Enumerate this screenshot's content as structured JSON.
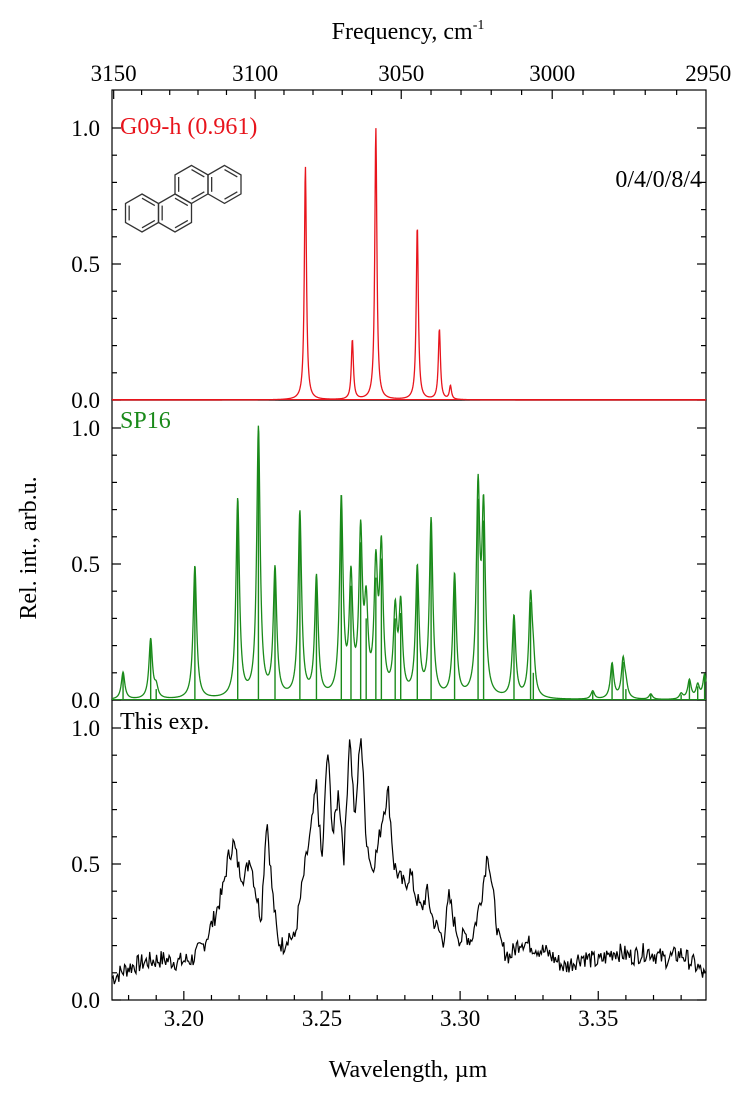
{
  "chart_data": {
    "type": "line",
    "top_axis": {
      "label": "Frequency, cm",
      "label_superscript": "-1",
      "ticks": [
        "3150",
        "3100",
        "3050",
        "3000",
        "2950"
      ],
      "tick_values": [
        3150,
        3100,
        3050,
        3000,
        2950
      ]
    },
    "x_axis": {
      "label": "Wavelength, µm",
      "ticks": [
        "3.20",
        "3.25",
        "3.30",
        "3.35"
      ],
      "tick_values": [
        3.2,
        3.25,
        3.3,
        3.35
      ],
      "xlim": [
        3.174,
        3.389
      ]
    },
    "y_axis": {
      "label": "Rel. int., arb.u.",
      "ticks": [
        "0.0",
        "0.5",
        "1.0"
      ],
      "tick_values": [
        0.0,
        0.5,
        1.0
      ]
    },
    "panels": [
      {
        "name": "G09-h (0.961)",
        "color": "#e8141c",
        "annotation": "0/4/0/8/4",
        "molecule_icon": "chrysene-molecule-icon",
        "ylim": [
          0,
          1.0
        ],
        "kind": "computed",
        "width": 0.00045,
        "peaks": [
          {
            "x": 3.244,
            "y": 0.86
          },
          {
            "x": 3.261,
            "y": 0.22
          },
          {
            "x": 3.2695,
            "y": 1.0
          },
          {
            "x": 3.2845,
            "y": 0.64
          },
          {
            "x": 3.2925,
            "y": 0.26
          },
          {
            "x": 3.2965,
            "y": 0.05
          }
        ]
      },
      {
        "name": "SP16",
        "color": "#1a8a1a",
        "ylim": [
          0,
          1.0
        ],
        "kind": "computed-sticks",
        "width": 0.00075,
        "peaks": [
          {
            "x": 3.178,
            "y": 0.1
          },
          {
            "x": 3.188,
            "y": 0.22
          },
          {
            "x": 3.19,
            "y": 0.04
          },
          {
            "x": 3.204,
            "y": 0.49
          },
          {
            "x": 3.2195,
            "y": 0.73
          },
          {
            "x": 3.227,
            "y": 0.99
          },
          {
            "x": 3.233,
            "y": 0.47
          },
          {
            "x": 3.242,
            "y": 0.68
          },
          {
            "x": 3.248,
            "y": 0.44
          },
          {
            "x": 3.257,
            "y": 0.72
          },
          {
            "x": 3.2605,
            "y": 0.42
          },
          {
            "x": 3.264,
            "y": 0.58
          },
          {
            "x": 3.266,
            "y": 0.3
          },
          {
            "x": 3.2695,
            "y": 0.45
          },
          {
            "x": 3.2715,
            "y": 0.52
          },
          {
            "x": 3.2765,
            "y": 0.3
          },
          {
            "x": 3.2785,
            "y": 0.32
          },
          {
            "x": 3.2845,
            "y": 0.47
          },
          {
            "x": 3.2895,
            "y": 0.65
          },
          {
            "x": 3.298,
            "y": 0.45
          },
          {
            "x": 3.3065,
            "y": 0.74
          },
          {
            "x": 3.3085,
            "y": 0.66
          },
          {
            "x": 3.3195,
            "y": 0.3
          },
          {
            "x": 3.3255,
            "y": 0.36
          },
          {
            "x": 3.3265,
            "y": 0.1
          },
          {
            "x": 3.348,
            "y": 0.03
          },
          {
            "x": 3.355,
            "y": 0.13
          },
          {
            "x": 3.359,
            "y": 0.14
          },
          {
            "x": 3.36,
            "y": 0.04
          },
          {
            "x": 3.369,
            "y": 0.02
          },
          {
            "x": 3.38,
            "y": 0.02
          },
          {
            "x": 3.383,
            "y": 0.07
          },
          {
            "x": 3.386,
            "y": 0.05
          },
          {
            "x": 3.3885,
            "y": 0.09
          }
        ]
      },
      {
        "name": "This exp.",
        "color": "#000000",
        "ylim": [
          0,
          1.0
        ],
        "kind": "experimental",
        "x": [
          3.174,
          3.18,
          3.186,
          3.192,
          3.198,
          3.203,
          3.207,
          3.211,
          3.214,
          3.216,
          3.218,
          3.22,
          3.222,
          3.224,
          3.226,
          3.228,
          3.23,
          3.232,
          3.234,
          3.236,
          3.238,
          3.24,
          3.242,
          3.244,
          3.246,
          3.248,
          3.25,
          3.252,
          3.254,
          3.256,
          3.258,
          3.26,
          3.262,
          3.264,
          3.266,
          3.268,
          3.27,
          3.272,
          3.274,
          3.276,
          3.278,
          3.28,
          3.282,
          3.284,
          3.286,
          3.288,
          3.29,
          3.292,
          3.294,
          3.296,
          3.298,
          3.3,
          3.302,
          3.304,
          3.306,
          3.308,
          3.31,
          3.312,
          3.314,
          3.316,
          3.318,
          3.322,
          3.326,
          3.332,
          3.338,
          3.344,
          3.35,
          3.356,
          3.362,
          3.368,
          3.374,
          3.38,
          3.386,
          3.389
        ],
        "y": [
          0.08,
          0.12,
          0.14,
          0.15,
          0.14,
          0.15,
          0.2,
          0.3,
          0.4,
          0.52,
          0.58,
          0.48,
          0.45,
          0.53,
          0.4,
          0.3,
          0.68,
          0.4,
          0.22,
          0.2,
          0.24,
          0.22,
          0.36,
          0.5,
          0.62,
          0.79,
          0.5,
          0.93,
          0.6,
          0.77,
          0.52,
          0.98,
          0.65,
          1.0,
          0.6,
          0.48,
          0.55,
          0.68,
          0.77,
          0.5,
          0.45,
          0.42,
          0.47,
          0.38,
          0.33,
          0.4,
          0.3,
          0.26,
          0.22,
          0.38,
          0.28,
          0.22,
          0.24,
          0.22,
          0.3,
          0.4,
          0.55,
          0.38,
          0.22,
          0.18,
          0.16,
          0.22,
          0.2,
          0.17,
          0.12,
          0.16,
          0.14,
          0.18,
          0.16,
          0.18,
          0.15,
          0.17,
          0.12,
          0.08
        ]
      }
    ]
  }
}
